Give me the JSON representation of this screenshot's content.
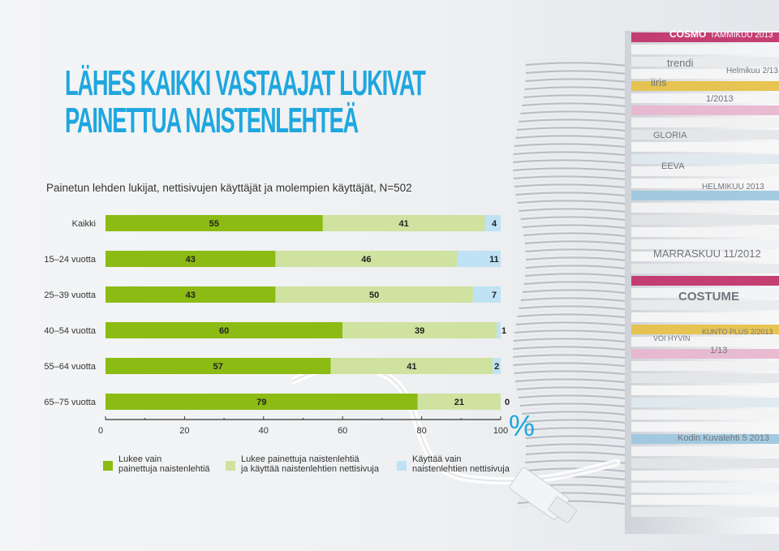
{
  "title_line1": "LÄHES KAIKKI VASTAAJAT LUKIVAT",
  "title_line2": "PAINETTUA NAISTENLEHTEÄ",
  "subtitle": "Painetun lehden lukijat, nettisivujen käyttäjät ja molempien käyttäjät, N=502",
  "colors": {
    "title": "#1ea7df",
    "print_only": "#8cbb14",
    "both": "#cfe29f",
    "web_only": "#bfe2f4"
  },
  "chart_data": {
    "type": "bar",
    "orientation": "horizontal",
    "stacked": true,
    "categories": [
      "Kaikki",
      "15–24 vuotta",
      "25–39 vuotta",
      "40–54 vuotta",
      "55–64 vuotta",
      "65–75 vuotta"
    ],
    "series": [
      {
        "name": "Lukee vain painettuja naistenlehtiä",
        "values": [
          55,
          43,
          43,
          60,
          57,
          79
        ]
      },
      {
        "name": "Lukee painettuja naistenlehtiä ja käyttää naistenlehtien nettisivuja",
        "values": [
          41,
          46,
          50,
          39,
          41,
          21
        ]
      },
      {
        "name": "Käyttää vain naistenlehtien nettisivuja",
        "values": [
          4,
          11,
          7,
          1,
          2,
          0
        ]
      }
    ],
    "xlim": [
      0,
      100
    ],
    "xticks": [
      "0",
      "20",
      "40",
      "60",
      "80",
      "100"
    ],
    "unit": "%",
    "legend_position": "bottom"
  },
  "legend": [
    {
      "line1": "Lukee vain",
      "line2": "painettuja naistenlehtiä"
    },
    {
      "line1": "Lukee painettuja naistenlehtiä",
      "line2": "ja käyttää naistenlehtien nettisivuja"
    },
    {
      "line1": "Käyttää vain",
      "line2": "naistenlehtien nettisivuja"
    }
  ],
  "magazines": [
    "COSMO",
    "TAMMIKUU 2013",
    "trendi",
    "Helmikuu 2/13",
    "iiris",
    "1/2013",
    "GLORIA",
    "EEVA",
    "HELMIKUU 2013",
    "MARRASKUU 11/2012",
    "COSTUME",
    "KUNTO PLUS 2/2013",
    "VOI HYVIN",
    "1/13",
    "Kodin Kuvalehti 5 2013"
  ]
}
